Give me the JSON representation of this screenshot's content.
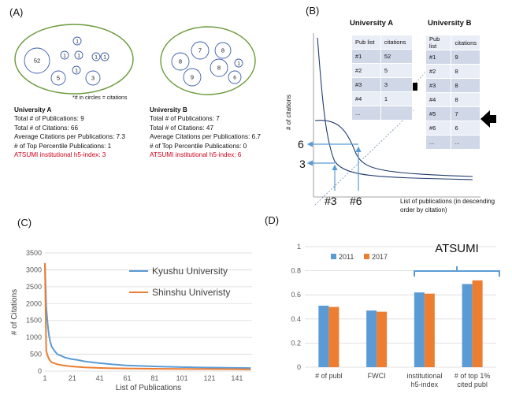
{
  "panel_labels": {
    "a": "(A)",
    "b": "(B)",
    "c": "(C)",
    "d": "(D)"
  },
  "panel_a": {
    "univ_a_circles": [
      "52",
      "1",
      "1",
      "1",
      "1",
      "1",
      "1",
      "5",
      "3"
    ],
    "univ_b_circles": [
      "8",
      "7",
      "8",
      "8",
      "1",
      "9",
      "6"
    ],
    "footnote": "*# in circles = citations",
    "univ_a": {
      "title": "University A",
      "lines": [
        "Total # of Publications: 9",
        "Total # of Citations: 66",
        "Average Citations per Publications: 7.3",
        "# of Top Percentile Publications: 1"
      ],
      "h5": "ATSUMI institutional h5-index: 3"
    },
    "univ_b": {
      "title": "University B",
      "lines": [
        "Total # of Publications: 7",
        "Total # of Citations: 47",
        "Average Citations per Publications: 6.7",
        "# of Top Percentile Publications: 0"
      ],
      "h5": "ATSUMI institutional h5-index: 6"
    }
  },
  "panel_b": {
    "ylabel": "# of citations",
    "xlabel_1": "List of publications (in descending",
    "xlabel_2": "order by citation)",
    "mark_6": "6",
    "mark_3": "3",
    "mark_x3": "#3",
    "mark_x6": "#6",
    "table_a": {
      "title": "University A",
      "headers": [
        "Pub list",
        "citations"
      ],
      "rows": [
        [
          "#1",
          "52"
        ],
        [
          "#2",
          "5"
        ],
        [
          "#3",
          "3"
        ],
        [
          "#4",
          "1"
        ],
        [
          "...",
          ""
        ]
      ]
    },
    "table_b": {
      "title": "University B",
      "headers": [
        "Pub list",
        "citations"
      ],
      "rows": [
        [
          "#1",
          "9"
        ],
        [
          "#2",
          "8"
        ],
        [
          "#3",
          "8"
        ],
        [
          "#4",
          "8"
        ],
        [
          "#5",
          "7"
        ],
        [
          "#6",
          "6"
        ],
        [
          "...",
          "..."
        ]
      ]
    }
  },
  "chart_data": [
    {
      "type": "line",
      "xlabel": "List of Publications",
      "ylabel": "# of Citations",
      "ylim": [
        0,
        3500
      ],
      "yticks": [
        "0",
        "500",
        "1000",
        "1500",
        "2000",
        "2500",
        "3000",
        "3500"
      ],
      "xticks": [
        "1",
        "21",
        "41",
        "61",
        "81",
        "101",
        "121",
        "141"
      ],
      "legend_position": "top-right",
      "grid": true,
      "series": [
        {
          "name": "Kyushu University",
          "color": "#5b9bd5",
          "x": [
            1,
            2,
            3,
            4,
            5,
            6,
            8,
            10,
            13,
            16,
            20,
            25,
            30,
            40,
            50,
            60,
            80,
            100,
            120,
            140,
            151
          ],
          "values": [
            3200,
            1900,
            1400,
            1050,
            850,
            720,
            600,
            500,
            450,
            400,
            360,
            330,
            290,
            240,
            200,
            170,
            140,
            120,
            105,
            95,
            90
          ]
        },
        {
          "name": "Shinshu Univeristy",
          "color": "#ed7d31",
          "x": [
            1,
            2,
            3,
            4,
            5,
            6,
            8,
            10,
            13,
            16,
            20,
            25,
            30,
            40,
            50,
            60,
            80,
            100,
            120,
            140,
            151
          ],
          "values": [
            3200,
            600,
            450,
            360,
            300,
            260,
            230,
            200,
            180,
            160,
            140,
            125,
            110,
            95,
            85,
            80,
            70,
            65,
            60,
            55,
            50
          ]
        }
      ]
    },
    {
      "type": "bar",
      "title": "ATSUMI",
      "ylim": [
        0,
        1
      ],
      "yticks": [
        "0",
        "0.2",
        "0.4",
        "0.6",
        "0.8",
        "1"
      ],
      "categories": [
        "# of publ",
        "FWCI",
        "institutional\nh5-index",
        "# of top 1%\ncited publ"
      ],
      "legend_position": "top-left",
      "grid": true,
      "series": [
        {
          "name": "2011",
          "color": "#5b9bd5",
          "values": [
            0.51,
            0.47,
            0.62,
            0.69
          ]
        },
        {
          "name": "2017",
          "color": "#ed7d31",
          "values": [
            0.5,
            0.46,
            0.61,
            0.72
          ]
        }
      ]
    }
  ]
}
